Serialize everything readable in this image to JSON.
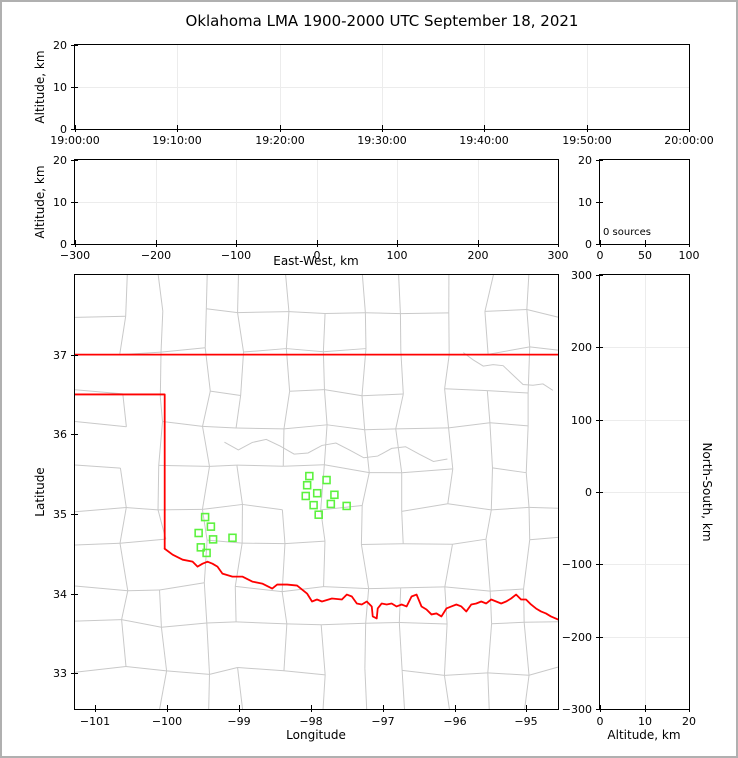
{
  "title": "Oklahoma LMA 1900-2000 UTC September 18, 2021",
  "colors": {
    "background": "#ffffff",
    "frame_border": "#b0b0b0",
    "spine": "#000000",
    "grid": "#ececec",
    "county": "#c9c9c9",
    "state_boundary": "#ff0000",
    "station": "#5cf23e",
    "text": "#000000"
  },
  "panels": {
    "time_height": {
      "ylabel": "Altitude, km",
      "x": {
        "min": 0,
        "max": 60,
        "tick_values": [
          0,
          10,
          20,
          30,
          40,
          50,
          60
        ],
        "tick_labels": [
          "19:00:00",
          "19:10:00",
          "19:20:00",
          "19:30:00",
          "19:40:00",
          "19:50:00",
          "20:00:00"
        ]
      },
      "y": {
        "min": 0,
        "max": 20,
        "tick_values": [
          0,
          10,
          20
        ],
        "tick_labels": [
          "0",
          "10",
          "20"
        ]
      }
    },
    "ew_height": {
      "ylabel": "Altitude, km",
      "xlabel": "East-West, km",
      "x": {
        "min": -300,
        "max": 300,
        "tick_values": [
          -300,
          -200,
          -100,
          0,
          100,
          200,
          300
        ],
        "tick_labels": [
          "−300",
          "−200",
          "−100",
          "0",
          "100",
          "200",
          "300"
        ]
      },
      "y": {
        "min": 0,
        "max": 20,
        "tick_values": [
          0,
          10,
          20
        ],
        "tick_labels": [
          "0",
          "10",
          "20"
        ]
      }
    },
    "histogram": {
      "annotation": "0 sources",
      "x": {
        "min": 0,
        "max": 100,
        "tick_values": [
          0,
          50,
          100
        ],
        "tick_labels": [
          "0",
          "50",
          "100"
        ]
      },
      "y": {
        "min": 0,
        "max": 20,
        "tick_values": [
          0,
          10,
          20
        ],
        "tick_labels": [
          "0",
          "10",
          "20"
        ]
      }
    },
    "map": {
      "xlabel": "Longitude",
      "ylabel": "Latitude",
      "x": {
        "min": -101.28,
        "max": -94.56,
        "tick_values": [
          -101,
          -100,
          -99,
          -98,
          -97,
          -96,
          -95
        ],
        "tick_labels": [
          "−101",
          "−100",
          "−99",
          "−98",
          "−97",
          "−96",
          "−95"
        ]
      },
      "y": {
        "min": 32.55,
        "max": 38.0,
        "tick_values": [
          33,
          34,
          35,
          36,
          37
        ],
        "tick_labels": [
          "33",
          "34",
          "35",
          "36",
          "37"
        ]
      }
    },
    "ns_height": {
      "xlabel": "Altitude, km",
      "ylabel": "North-South, km",
      "x": {
        "min": 0,
        "max": 20,
        "tick_values": [
          0,
          10,
          20
        ],
        "tick_labels": [
          "0",
          "10",
          "20"
        ]
      },
      "y": {
        "min": -300,
        "max": 300,
        "tick_values": [
          -300,
          -200,
          -100,
          0,
          100,
          200,
          300
        ],
        "tick_labels": [
          "−300",
          "−200",
          "−100",
          "0",
          "100",
          "200",
          "300"
        ]
      }
    }
  },
  "chart_data": [
    {
      "type": "scatter",
      "title": "Oklahoma LMA 1900-2000 UTC September 18, 2021",
      "ylabel": "Altitude, km",
      "ylim": [
        0,
        20
      ],
      "xticks": [
        "19:00:00",
        "19:10:00",
        "19:20:00",
        "19:30:00",
        "19:40:00",
        "19:50:00",
        "20:00:00"
      ],
      "points": [],
      "grid": true
    },
    {
      "type": "scatter",
      "xlabel": "East-West, km",
      "ylabel": "Altitude, km",
      "xlim": [
        -300,
        300
      ],
      "ylim": [
        0,
        20
      ],
      "points": [],
      "grid": true
    },
    {
      "type": "histogram",
      "annotation": "0 sources",
      "xlim": [
        0,
        100
      ],
      "ylim": [
        0,
        20
      ],
      "xticks": [
        0,
        50,
        100
      ],
      "yticks": [
        0,
        10,
        20
      ],
      "points": []
    },
    {
      "type": "scatter",
      "xlabel": "Longitude",
      "ylabel": "Latitude",
      "xlim": [
        -101.28,
        -94.56
      ],
      "ylim": [
        32.55,
        38.0
      ],
      "map_layers": [
        "county boundaries (gray)",
        "Oklahoma state boundary and Red River (red)"
      ],
      "series": [
        {
          "name": "LMA stations",
          "marker": "open green square",
          "points": [
            [
              -98.02,
              35.475
            ],
            [
              -97.78,
              35.425
            ],
            [
              -98.05,
              35.36
            ],
            [
              -97.91,
              35.26
            ],
            [
              -98.07,
              35.225
            ],
            [
              -97.67,
              35.24
            ],
            [
              -97.72,
              35.125
            ],
            [
              -97.96,
              35.11
            ],
            [
              -97.5,
              35.1
            ],
            [
              -97.89,
              34.99
            ],
            [
              -99.47,
              34.96
            ],
            [
              -99.39,
              34.84
            ],
            [
              -99.56,
              34.76
            ],
            [
              -99.36,
              34.68
            ],
            [
              -99.09,
              34.7
            ],
            [
              -99.53,
              34.58
            ],
            [
              -99.45,
              34.51
            ]
          ]
        }
      ]
    },
    {
      "type": "scatter",
      "xlabel": "Altitude, km",
      "ylabel": "North-South, km",
      "xlim": [
        0,
        20
      ],
      "ylim": [
        -300,
        300
      ],
      "points": [],
      "grid": true
    }
  ]
}
